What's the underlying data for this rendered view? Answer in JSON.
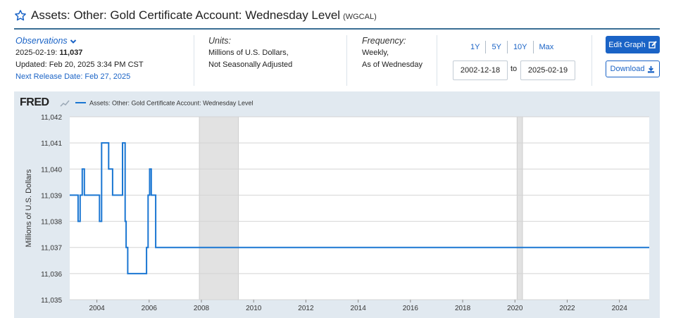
{
  "header": {
    "title": "Assets: Other: Gold Certificate Account: Wednesday Level",
    "series_code": "(WGCAL)"
  },
  "observations": {
    "heading": "Observations",
    "date": "2025-02-19:",
    "value": "11,037",
    "updated": "Updated: Feb 20, 2025 3:34 PM CST",
    "next_release": "Next Release Date: Feb 27, 2025"
  },
  "units": {
    "heading": "Units:",
    "line1": "Millions of U.S. Dollars,",
    "line2": "Not Seasonally Adjusted"
  },
  "frequency": {
    "heading": "Frequency:",
    "line1": "Weekly,",
    "line2": "As of Wednesday"
  },
  "range_buttons": [
    "1Y",
    "5Y",
    "10Y",
    "Max"
  ],
  "date_range": {
    "start": "2002-12-18",
    "to_label": "to",
    "end": "2025-02-19"
  },
  "buttons": {
    "edit_graph": "Edit Graph",
    "download": "Download"
  },
  "colors": {
    "line": "#1a76d2",
    "accent": "#1a63c6",
    "plot_bg": "#e1e9f0",
    "recession": "#e2e2e2"
  },
  "chart_data": {
    "type": "line",
    "logo": "FRED",
    "legend": "Assets: Other: Gold Certificate Account: Wednesday Level",
    "ylabel": "Millions of U.S. Dollars",
    "xlim": [
      2002.96,
      2025.14
    ],
    "ylim": [
      11035,
      11042
    ],
    "y_ticks": [
      "11,035",
      "11,036",
      "11,037",
      "11,038",
      "11,039",
      "11,040",
      "11,041",
      "11,042"
    ],
    "y_tick_values": [
      11035,
      11036,
      11037,
      11038,
      11039,
      11040,
      11041,
      11042
    ],
    "x_ticks": [
      "2004",
      "2006",
      "2008",
      "2010",
      "2012",
      "2014",
      "2016",
      "2018",
      "2020",
      "2022",
      "2024"
    ],
    "x_tick_values": [
      2004,
      2006,
      2008,
      2010,
      2012,
      2014,
      2016,
      2018,
      2020,
      2022,
      2024
    ],
    "recessions": [
      [
        2007.92,
        2009.42
      ],
      [
        2020.08,
        2020.29
      ]
    ],
    "grid": true,
    "series": [
      {
        "name": "Assets: Other: Gold Certificate Account: Wednesday Level",
        "x": [
          2002.96,
          2003.28,
          2003.28,
          2003.36,
          2003.36,
          2003.44,
          2003.44,
          2003.52,
          2003.52,
          2004.1,
          2004.1,
          2004.18,
          2004.18,
          2004.45,
          2004.45,
          2004.6,
          2004.6,
          2004.98,
          2004.98,
          2005.08,
          2005.08,
          2005.12,
          2005.12,
          2005.18,
          2005.18,
          2005.9,
          2005.9,
          2005.96,
          2005.96,
          2006.02,
          2006.02,
          2006.08,
          2006.08,
          2006.25,
          2006.25,
          2006.32,
          2006.32,
          2025.14
        ],
        "values": [
          11039,
          11039,
          11038,
          11038,
          11039,
          11039,
          11040,
          11040,
          11039,
          11039,
          11038,
          11038,
          11041,
          11041,
          11040,
          11040,
          11039,
          11039,
          11041,
          11041,
          11038,
          11038,
          11037,
          11037,
          11036,
          11036,
          11037,
          11037,
          11039,
          11039,
          11040,
          11040,
          11039,
          11039,
          11037,
          11037,
          11037,
          11037
        ]
      }
    ]
  }
}
